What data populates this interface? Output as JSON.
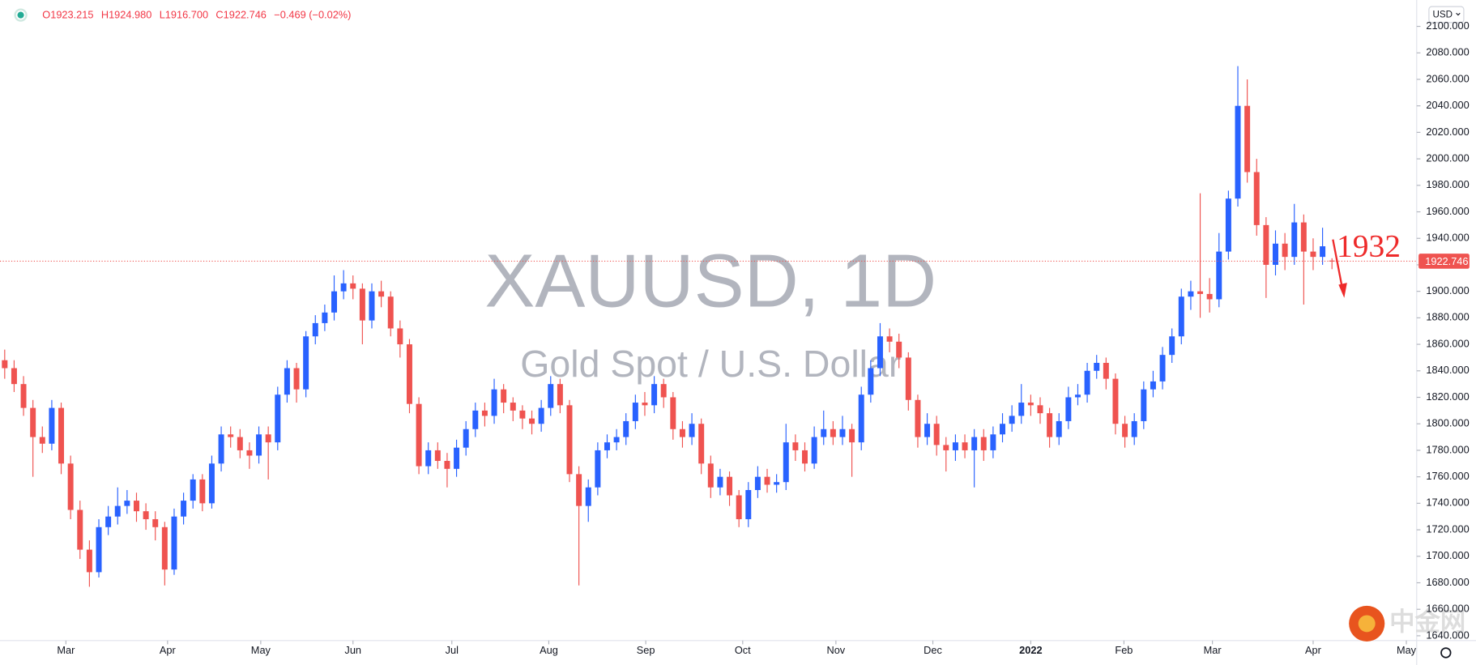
{
  "chart_data": {
    "type": "candlestick",
    "title": "XAUUSD, 1D",
    "subtitle": "Gold Spot / U.S. Dollar",
    "legend_items": [
      "O1923.215",
      "H1924.980",
      "L1916.700",
      "C1922.746",
      "−0.469 (−0.02%)"
    ],
    "currency": "USD",
    "annotation": 1932,
    "up_color": "#2962ff",
    "down_color": "#ef5350",
    "grid": false,
    "open": [
      1848,
      1842,
      1830,
      1812,
      1790,
      1785,
      1812,
      1770,
      1735,
      1705,
      1688,
      1722,
      1730,
      1738,
      1742,
      1734,
      1728,
      1722,
      1690,
      1730,
      1742,
      1758,
      1740,
      1770,
      1792,
      1790,
      1780,
      1776,
      1792,
      1786,
      1822,
      1842,
      1826,
      1866,
      1876,
      1884,
      1900,
      1906,
      1902,
      1878,
      1900,
      1896,
      1872,
      1860,
      1815,
      1768,
      1780,
      1772,
      1766,
      1782,
      1796,
      1810,
      1806,
      1826,
      1816,
      1810,
      1804,
      1800,
      1812,
      1830,
      1814,
      1762,
      1738,
      1752,
      1780,
      1786,
      1790,
      1802,
      1816,
      1814,
      1830,
      1820,
      1796,
      1790,
      1800,
      1770,
      1752,
      1760,
      1746,
      1728,
      1750,
      1760,
      1754,
      1756,
      1786,
      1780,
      1770,
      1790,
      1796,
      1790,
      1796,
      1786,
      1822,
      1842,
      1866,
      1862,
      1850,
      1818,
      1790,
      1800,
      1784,
      1780,
      1786,
      1780,
      1790,
      1780,
      1792,
      1800,
      1806,
      1816,
      1814,
      1808,
      1790,
      1802,
      1820,
      1822,
      1840,
      1846,
      1834,
      1800,
      1790,
      1802,
      1826,
      1832,
      1852,
      1866,
      1896,
      1900,
      1898,
      1894,
      1930,
      1970,
      2040,
      1990,
      1950,
      1920,
      1936,
      1926,
      1952,
      1930,
      1926,
      1923.215
    ],
    "high": [
      1856,
      1848,
      1836,
      1818,
      1798,
      1818,
      1816,
      1776,
      1742,
      1712,
      1728,
      1738,
      1752,
      1750,
      1748,
      1740,
      1734,
      1726,
      1736,
      1748,
      1762,
      1762,
      1776,
      1798,
      1798,
      1796,
      1786,
      1798,
      1798,
      1828,
      1848,
      1846,
      1870,
      1882,
      1890,
      1912,
      1916,
      1912,
      1906,
      1906,
      1908,
      1900,
      1878,
      1864,
      1820,
      1786,
      1786,
      1778,
      1788,
      1802,
      1816,
      1816,
      1834,
      1830,
      1820,
      1814,
      1810,
      1818,
      1836,
      1834,
      1818,
      1768,
      1758,
      1786,
      1792,
      1796,
      1808,
      1822,
      1824,
      1836,
      1834,
      1824,
      1802,
      1808,
      1804,
      1776,
      1766,
      1764,
      1750,
      1756,
      1768,
      1766,
      1762,
      1800,
      1792,
      1786,
      1798,
      1810,
      1802,
      1806,
      1800,
      1828,
      1848,
      1876,
      1872,
      1868,
      1854,
      1822,
      1808,
      1806,
      1790,
      1792,
      1792,
      1796,
      1796,
      1798,
      1808,
      1814,
      1830,
      1822,
      1820,
      1812,
      1808,
      1828,
      1830,
      1846,
      1852,
      1850,
      1838,
      1806,
      1808,
      1832,
      1840,
      1858,
      1872,
      1902,
      1908,
      1974,
      1910,
      1944,
      1976,
      2070,
      2060,
      2000,
      1956,
      1946,
      1944,
      1966,
      1958,
      1940,
      1948,
      1924.98
    ],
    "low": [
      1834,
      1824,
      1806,
      1760,
      1778,
      1780,
      1762,
      1728,
      1698,
      1677,
      1684,
      1716,
      1724,
      1732,
      1726,
      1720,
      1712,
      1678,
      1686,
      1724,
      1736,
      1734,
      1736,
      1764,
      1782,
      1774,
      1766,
      1770,
      1758,
      1780,
      1816,
      1816,
      1820,
      1860,
      1870,
      1878,
      1894,
      1894,
      1860,
      1872,
      1888,
      1866,
      1850,
      1808,
      1762,
      1762,
      1766,
      1752,
      1760,
      1776,
      1790,
      1798,
      1800,
      1808,
      1802,
      1796,
      1792,
      1794,
      1806,
      1808,
      1756,
      1678,
      1726,
      1746,
      1774,
      1780,
      1784,
      1796,
      1806,
      1808,
      1812,
      1788,
      1782,
      1784,
      1762,
      1744,
      1746,
      1738,
      1722,
      1722,
      1744,
      1748,
      1748,
      1750,
      1772,
      1764,
      1766,
      1784,
      1784,
      1784,
      1760,
      1780,
      1816,
      1836,
      1854,
      1842,
      1810,
      1782,
      1784,
      1776,
      1764,
      1772,
      1774,
      1752,
      1772,
      1774,
      1786,
      1794,
      1800,
      1806,
      1800,
      1782,
      1784,
      1796,
      1814,
      1816,
      1834,
      1826,
      1792,
      1782,
      1784,
      1796,
      1820,
      1826,
      1846,
      1860,
      1886,
      1880,
      1884,
      1888,
      1924,
      1964,
      1982,
      1942,
      1895,
      1912,
      1916,
      1920,
      1890,
      1916,
      1920,
      1916.7
    ],
    "close": [
      1842,
      1830,
      1812,
      1790,
      1785,
      1812,
      1770,
      1735,
      1705,
      1688,
      1722,
      1730,
      1738,
      1742,
      1734,
      1728,
      1722,
      1690,
      1730,
      1742,
      1758,
      1740,
      1770,
      1792,
      1790,
      1780,
      1776,
      1792,
      1786,
      1822,
      1842,
      1826,
      1866,
      1876,
      1884,
      1900,
      1906,
      1902,
      1878,
      1900,
      1896,
      1872,
      1860,
      1815,
      1768,
      1780,
      1772,
      1766,
      1782,
      1796,
      1810,
      1806,
      1826,
      1816,
      1810,
      1804,
      1800,
      1812,
      1830,
      1814,
      1762,
      1738,
      1752,
      1780,
      1786,
      1790,
      1802,
      1816,
      1814,
      1830,
      1820,
      1796,
      1790,
      1800,
      1770,
      1752,
      1760,
      1746,
      1728,
      1750,
      1760,
      1754,
      1756,
      1786,
      1780,
      1770,
      1790,
      1796,
      1790,
      1796,
      1786,
      1822,
      1842,
      1866,
      1862,
      1850,
      1818,
      1790,
      1800,
      1784,
      1780,
      1786,
      1780,
      1790,
      1780,
      1792,
      1800,
      1806,
      1816,
      1814,
      1808,
      1790,
      1802,
      1820,
      1822,
      1840,
      1846,
      1834,
      1800,
      1790,
      1802,
      1826,
      1832,
      1852,
      1866,
      1896,
      1900,
      1898,
      1894,
      1930,
      1970,
      2040,
      1990,
      1950,
      1920,
      1936,
      1926,
      1952,
      1930,
      1926,
      1934,
      1922.746
    ],
    "xlim": [
      -0.5,
      150
    ],
    "xticks": [
      {
        "value": 6.5,
        "label": "Mar"
      },
      {
        "value": 17.3,
        "label": "Apr"
      },
      {
        "value": 27.2,
        "label": "May"
      },
      {
        "value": 37,
        "label": "Jun"
      },
      {
        "value": 47.5,
        "label": "Jul"
      },
      {
        "value": 57.8,
        "label": "Aug"
      },
      {
        "value": 68.1,
        "label": "Sep"
      },
      {
        "value": 78.4,
        "label": "Oct"
      },
      {
        "value": 88.3,
        "label": "Nov"
      },
      {
        "value": 98.6,
        "label": "Dec"
      },
      {
        "value": 109,
        "label": "2022"
      },
      {
        "value": 118.9,
        "label": "Feb"
      },
      {
        "value": 128.3,
        "label": "Mar"
      },
      {
        "value": 139,
        "label": "Apr"
      },
      {
        "value": 148.9,
        "label": "May"
      }
    ],
    "ylim": [
      1636.4,
      2119.9
    ],
    "yticks": [
      {
        "value": 1640,
        "label": "1640.000"
      },
      {
        "value": 1660,
        "label": "1660.000"
      },
      {
        "value": 1680,
        "label": "1680.000"
      },
      {
        "value": 1700,
        "label": "1700.000"
      },
      {
        "value": 1720,
        "label": "1720.000"
      },
      {
        "value": 1740,
        "label": "1740.000"
      },
      {
        "value": 1760,
        "label": "1760.000"
      },
      {
        "value": 1780,
        "label": "1780.000"
      },
      {
        "value": 1800,
        "label": "1800.000"
      },
      {
        "value": 1820,
        "label": "1820.000"
      },
      {
        "value": 1840,
        "label": "1840.000"
      },
      {
        "value": 1860,
        "label": "1860.000"
      },
      {
        "value": 1880,
        "label": "1880.000"
      },
      {
        "value": 1900,
        "label": "1900.000"
      },
      {
        "value": 1920,
        "label": "1920.000"
      },
      {
        "value": 1940,
        "label": "1940.000"
      },
      {
        "value": 1960,
        "label": "1960.000"
      },
      {
        "value": 1980,
        "label": "1980.000"
      },
      {
        "value": 2000,
        "label": "2000.000"
      },
      {
        "value": 2020,
        "label": "2020.000"
      },
      {
        "value": 2040,
        "label": "2040.000"
      },
      {
        "value": 2060,
        "label": "2060.000"
      },
      {
        "value": 2080,
        "label": "2080.000"
      },
      {
        "value": 2100,
        "label": "2100.000"
      }
    ]
  },
  "logo": {
    "text": "中金网"
  }
}
